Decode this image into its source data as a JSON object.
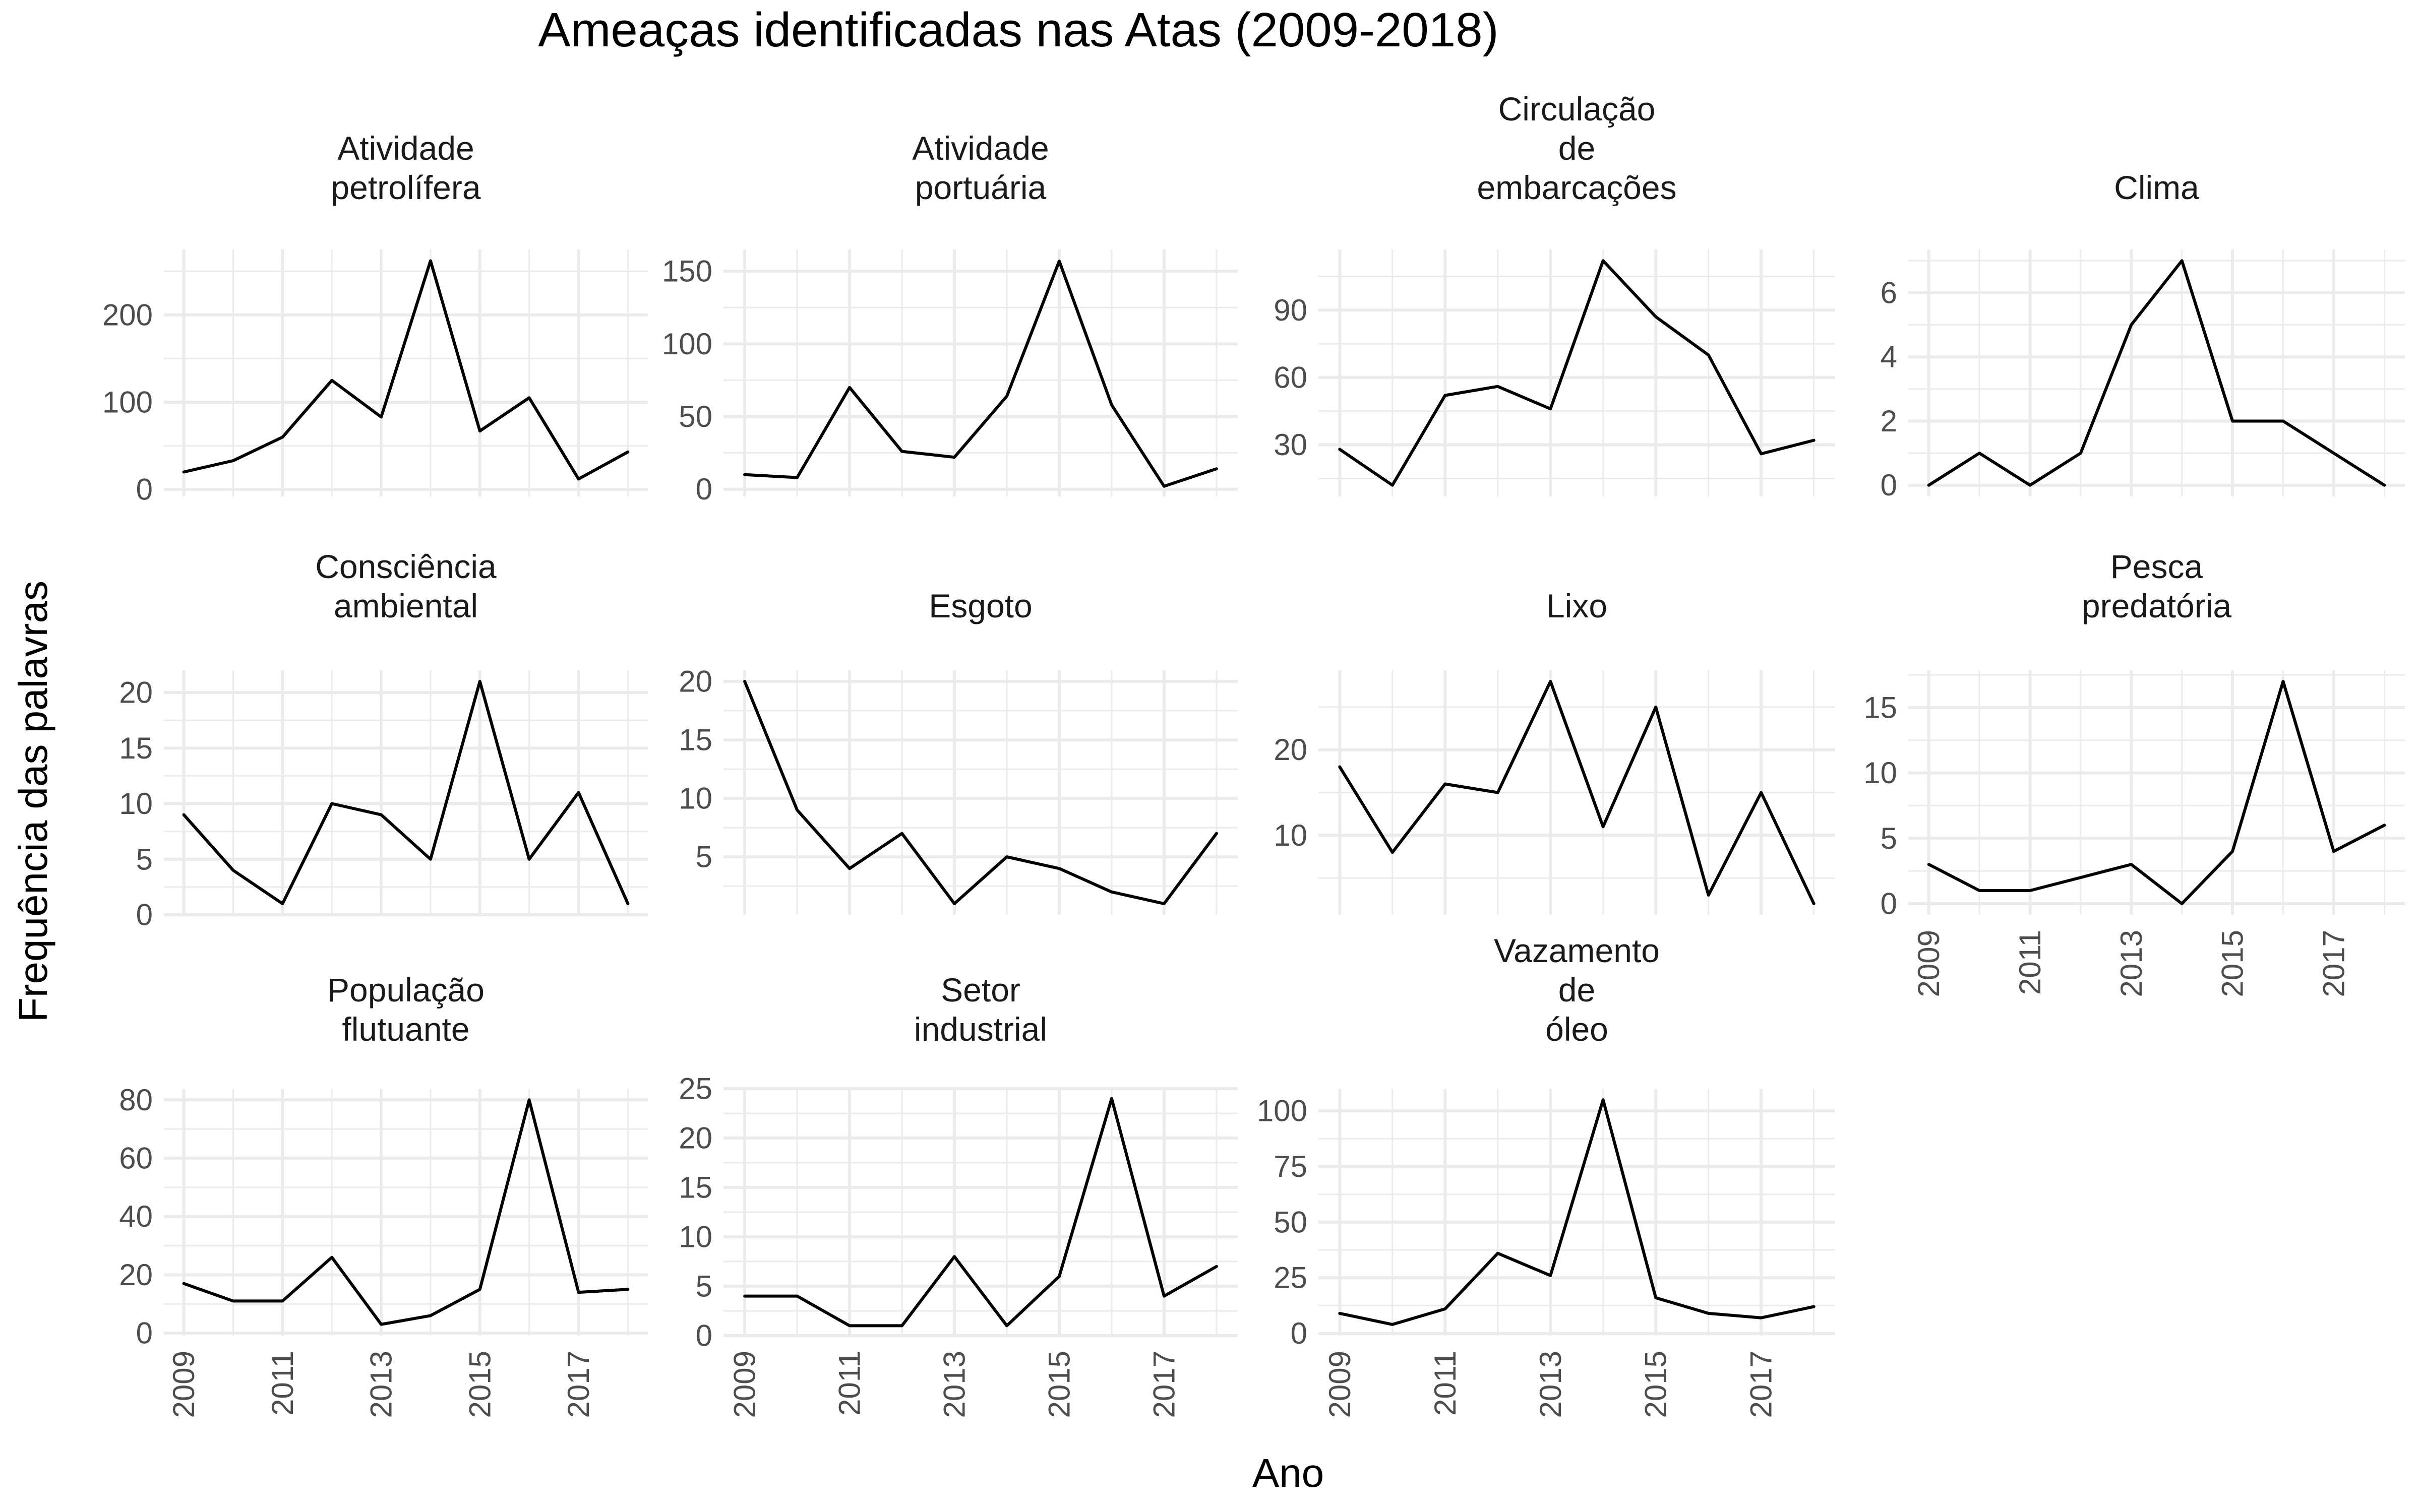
{
  "chart_data": {
    "type": "line",
    "title": "Ameaças identificadas nas Atas (2009-2018)",
    "xlabel": "Ano",
    "ylabel": "Frequência das palavras",
    "x": [
      2009,
      2010,
      2011,
      2012,
      2013,
      2014,
      2015,
      2016,
      2017,
      2018
    ],
    "x_tick_labels": [
      "2009",
      "2011",
      "2013",
      "2015",
      "2017"
    ],
    "line_color": "#000000",
    "grid_color": "#ebebeb",
    "panels": [
      {
        "title_lines": [
          "Atividade",
          "petrolífera"
        ],
        "values": [
          20,
          33,
          60,
          125,
          83,
          262,
          67,
          105,
          12,
          43
        ],
        "ylim": [
          -8,
          275
        ],
        "y_ticks": [
          0,
          100,
          200
        ],
        "y_tick_labels": [
          "0",
          "100",
          "200"
        ]
      },
      {
        "title_lines": [
          "Atividade",
          "portuária"
        ],
        "values": [
          10,
          8,
          70,
          26,
          22,
          64,
          157,
          58,
          2,
          14
        ],
        "ylim": [
          -5,
          165
        ],
        "y_ticks": [
          0,
          50,
          100,
          150
        ],
        "y_tick_labels": [
          "0",
          "50",
          "100",
          "150"
        ]
      },
      {
        "title_lines": [
          "Circulação",
          "de",
          "embarcações"
        ],
        "values": [
          28,
          12,
          52,
          56,
          46,
          112,
          87,
          70,
          26,
          32
        ],
        "ylim": [
          7,
          117
        ],
        "y_ticks": [
          30,
          60,
          90
        ],
        "y_tick_labels": [
          "30",
          "60",
          "90"
        ]
      },
      {
        "title_lines": [
          "Clima"
        ],
        "values": [
          0,
          1,
          0,
          1,
          5,
          7,
          2,
          2,
          1,
          0
        ],
        "ylim": [
          -0.35,
          7.35
        ],
        "y_ticks": [
          0,
          2,
          4,
          6
        ],
        "y_tick_labels": [
          "0",
          "2",
          "4",
          "6"
        ]
      },
      {
        "title_lines": [
          "Consciência",
          "ambiental"
        ],
        "values": [
          9,
          4,
          1,
          10,
          9,
          5,
          21,
          5,
          11,
          1
        ],
        "ylim": [
          0,
          22
        ],
        "y_ticks": [
          0,
          5,
          10,
          15,
          20
        ],
        "y_tick_labels": [
          "0",
          "5",
          "10",
          "15",
          "20"
        ]
      },
      {
        "title_lines": [
          "Esgoto"
        ],
        "values": [
          20,
          9,
          4,
          7,
          1,
          5,
          4,
          2,
          1,
          7
        ],
        "ylim": [
          0.05,
          20.95
        ],
        "y_ticks": [
          5,
          10,
          15,
          20
        ],
        "y_tick_labels": [
          "5",
          "10",
          "15",
          "20"
        ]
      },
      {
        "title_lines": [
          "Lixo"
        ],
        "values": [
          18,
          8,
          16,
          15,
          28,
          11,
          25,
          3,
          15,
          2
        ],
        "ylim": [
          0.7,
          29.3
        ],
        "y_ticks": [
          10,
          20
        ],
        "y_tick_labels": [
          "10",
          "20"
        ]
      },
      {
        "title_lines": [
          "Pesca",
          "predatória"
        ],
        "values": [
          3,
          1,
          1,
          2,
          3,
          0,
          4,
          17,
          4,
          6
        ],
        "ylim": [
          -0.85,
          17.85
        ],
        "y_ticks": [
          0,
          5,
          10,
          15
        ],
        "y_tick_labels": [
          "0",
          "5",
          "10",
          "15"
        ]
      },
      {
        "title_lines": [
          "População",
          "flutuante"
        ],
        "values": [
          17,
          11,
          11,
          26,
          3,
          6,
          15,
          80,
          14,
          15
        ],
        "ylim": [
          -0.85,
          83.85
        ],
        "y_ticks": [
          0,
          20,
          40,
          60,
          80
        ],
        "y_tick_labels": [
          "0",
          "20",
          "40",
          "60",
          "80"
        ]
      },
      {
        "title_lines": [
          "Setor",
          "industrial"
        ],
        "values": [
          4,
          4,
          1,
          1,
          8,
          1,
          6,
          24,
          4,
          7
        ],
        "ylim": [
          0,
          25
        ],
        "y_ticks": [
          0,
          5,
          10,
          15,
          20,
          25
        ],
        "y_tick_labels": [
          "0",
          "5",
          "10",
          "15",
          "20",
          "25"
        ]
      },
      {
        "title_lines": [
          "Vazamento",
          "de",
          "óleo"
        ],
        "values": [
          9,
          4,
          11,
          36,
          26,
          105,
          16,
          9,
          7,
          12
        ],
        "ylim": [
          -1,
          110
        ],
        "y_ticks": [
          0,
          25,
          50,
          75,
          100
        ],
        "y_tick_labels": [
          "0",
          "25",
          "50",
          "75",
          "100"
        ]
      }
    ]
  }
}
